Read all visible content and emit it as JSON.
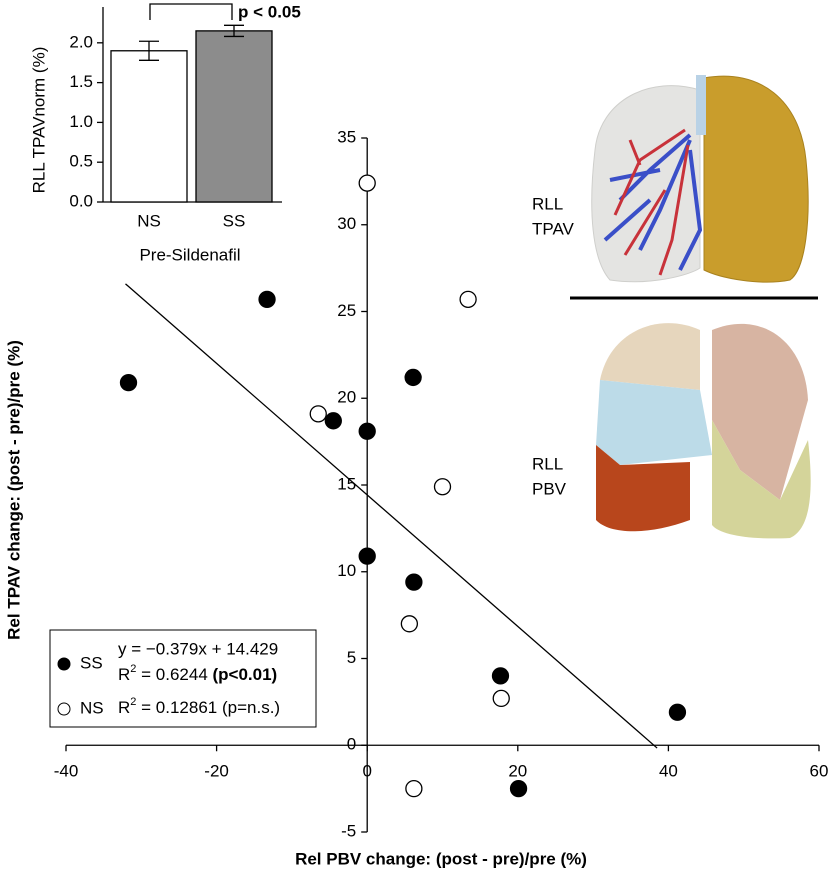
{
  "chart_data": [
    {
      "type": "scatter",
      "xlabel": "Rel PBV change: (post - pre)/pre (%)",
      "ylabel": "Rel TPAV change: (post - pre)/pre (%)",
      "xlim": [
        -40,
        60
      ],
      "ylim": [
        -5,
        35
      ],
      "xticks": [
        -40,
        -20,
        0,
        20,
        40,
        60
      ],
      "yticks": [
        -5,
        0,
        5,
        10,
        15,
        20,
        25,
        30,
        35
      ],
      "series": [
        {
          "name": "SS",
          "color": "#000000",
          "x": [
            -31.7,
            -13.3,
            -4.5,
            0,
            0,
            6.1,
            6.2,
            17.7,
            20.1,
            41.2
          ],
          "values": [
            20.9,
            25.7,
            18.7,
            18.1,
            10.9,
            21.2,
            9.4,
            4.0,
            -2.5,
            1.9
          ],
          "equation": "y = −0.379x + 14.429",
          "r2": [
            "R",
            "2",
            " = 0.6244 "
          ],
          "significance": "(p<0.01)"
        },
        {
          "name": "NS",
          "color": "#ffffff",
          "x": [
            0,
            13.4,
            -6.5,
            10,
            5.6,
            6.2,
            17.8
          ],
          "values": [
            32.4,
            25.7,
            19.1,
            14.9,
            7.0,
            -2.5,
            2.7
          ],
          "r2": [
            "R",
            "2",
            " = 0.12861 "
          ],
          "significance": "(p=n.s.)"
        }
      ],
      "fit": {
        "slope": -0.379,
        "intercept": 14.429,
        "x": [
          -32.1,
          38.5
        ]
      }
    },
    {
      "type": "bar",
      "ylabel": "RLL TPAVnorm (%)",
      "xlabel": "Pre-Sildenafil",
      "categories": [
        "NS",
        "SS"
      ],
      "values": [
        1.9,
        2.15
      ],
      "errors": [
        0.12,
        0.07
      ],
      "colors": [
        "#ffffff",
        "#8c8c8c"
      ],
      "ylim": [
        0,
        2.45
      ],
      "yticks": [
        {
          "value": 0,
          "label": "0.0"
        },
        {
          "value": 0.5,
          "label": "0.5"
        },
        {
          "value": 1,
          "label": "1.0"
        },
        {
          "value": 1.5,
          "label": "1.5"
        },
        {
          "value": 2,
          "label": "2.0"
        }
      ],
      "annotation": "p < 0.05"
    }
  ],
  "images": [
    [
      "RLL",
      "TPAV"
    ],
    [
      "RLL",
      "PBV"
    ]
  ]
}
